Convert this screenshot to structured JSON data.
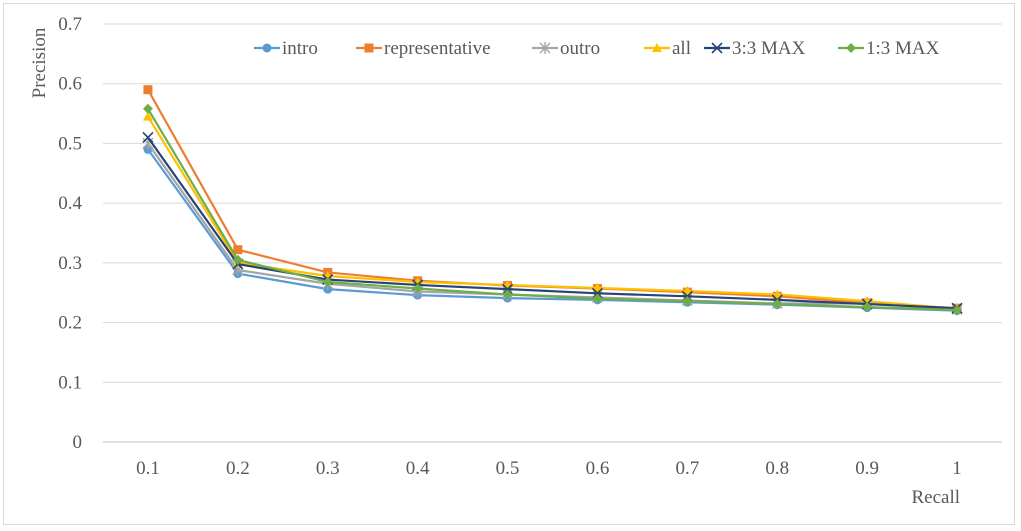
{
  "chart_data": {
    "type": "line",
    "title": "",
    "xlabel": "Recall",
    "ylabel": "Precision",
    "categories": [
      "0.1",
      "0.2",
      "0.3",
      "0.4",
      "0.5",
      "0.6",
      "0.7",
      "0.8",
      "0.9",
      "1"
    ],
    "ylim": [
      0,
      0.7
    ],
    "yticks": [
      "0",
      "0.1",
      "0.2",
      "0.3",
      "0.4",
      "0.5",
      "0.6",
      "0.7"
    ],
    "grid": "horizontal",
    "legend_position": "top-right",
    "series": [
      {
        "name": "intro",
        "color": "#5b9bd5",
        "marker": "circle",
        "values": [
          0.49,
          0.282,
          0.256,
          0.246,
          0.241,
          0.238,
          0.234,
          0.23,
          0.225,
          0.22
        ]
      },
      {
        "name": "representative",
        "color": "#ed7d31",
        "marker": "square",
        "values": [
          0.59,
          0.322,
          0.284,
          0.27,
          0.262,
          0.257,
          0.251,
          0.244,
          0.233,
          0.224
        ]
      },
      {
        "name": "outro",
        "color": "#a5a5a5",
        "marker": "star",
        "values": [
          0.5,
          0.288,
          0.265,
          0.252,
          0.247,
          0.242,
          0.237,
          0.232,
          0.232,
          0.222
        ]
      },
      {
        "name": "all",
        "color": "#ffc000",
        "marker": "triangle",
        "values": [
          0.545,
          0.3,
          0.278,
          0.268,
          0.263,
          0.258,
          0.253,
          0.247,
          0.236,
          0.223
        ]
      },
      {
        "name": "3:3 MAX",
        "color": "#264478",
        "marker": "x",
        "values": [
          0.51,
          0.298,
          0.272,
          0.263,
          0.256,
          0.249,
          0.244,
          0.238,
          0.231,
          0.224
        ]
      },
      {
        "name": "1:3 MAX",
        "color": "#70ad47",
        "marker": "diamond",
        "values": [
          0.558,
          0.305,
          0.268,
          0.257,
          0.247,
          0.24,
          0.236,
          0.231,
          0.226,
          0.221
        ]
      }
    ]
  }
}
